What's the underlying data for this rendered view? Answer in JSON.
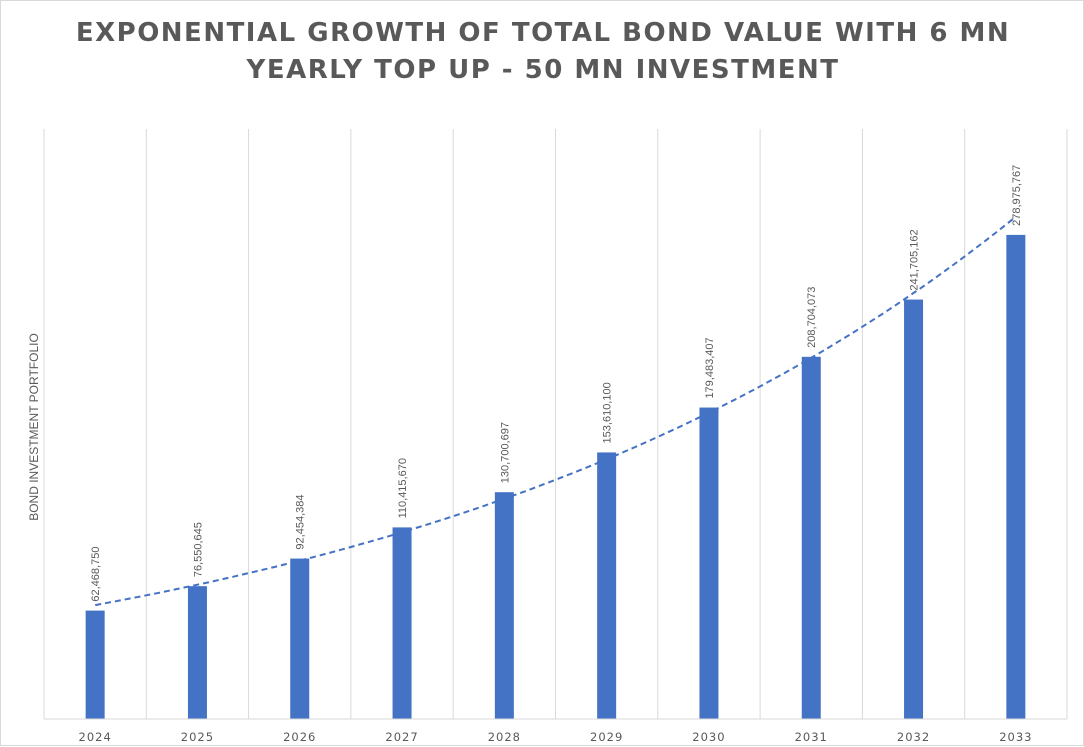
{
  "chart_data": {
    "type": "bar",
    "title_lines": [
      "EXPONENTIAL GROWTH OF TOTAL BOND VALUE WITH 6 MN",
      "YEARLY TOP UP - 50 MN INVESTMENT"
    ],
    "xlabel": "",
    "ylabel": "BOND INVESTMENT PORTFOLIO",
    "categories": [
      "2024",
      "2025",
      "2026",
      "2027",
      "2028",
      "2029",
      "2030",
      "2031",
      "2032",
      "2033"
    ],
    "values": [
      62468750,
      76550645,
      92454384,
      110415670,
      130700697,
      153610100,
      179483407,
      208704073,
      241705162,
      278975767
    ],
    "data_labels": [
      "62,468,750",
      "76,550,645",
      "92,454,384",
      "110,415,670",
      "130,700,697",
      "153,610,100",
      "179,483,407",
      "208,704,073",
      "241,705,162",
      "278,975,767"
    ],
    "ylim": [
      0,
      340000000
    ],
    "y_axis_tick_labels_shown": false,
    "trendline": "exponential, dashed",
    "grid": "vertical lines between categories",
    "legend": "none",
    "colors": {
      "bar": "#4472c4",
      "trendline": "#4472c4",
      "text": "#595959",
      "grid": "#d9d9d9"
    }
  }
}
